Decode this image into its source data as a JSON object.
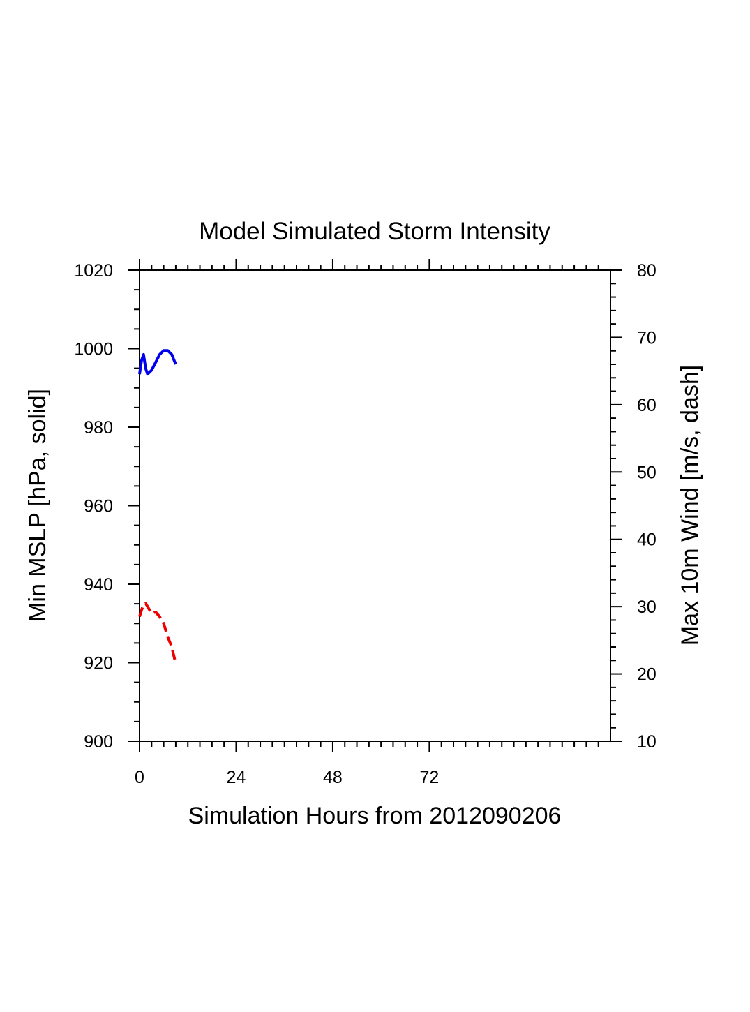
{
  "chart_data": {
    "type": "line",
    "title": "Model Simulated Storm Intensity",
    "xlabel": "Simulation Hours from 2012090206",
    "ylabel_left": "Min MSLP  [hPa, solid]",
    "ylabel_right": "Max 10m Wind  [m/s, dash]",
    "xlim": [
      0,
      117
    ],
    "ylim_left": [
      900,
      1020
    ],
    "ylim_right": [
      10,
      80
    ],
    "x_ticks": [
      0,
      24,
      48,
      72
    ],
    "x_tick_labels": [
      "0",
      "24",
      "48",
      "72"
    ],
    "y_left_ticks": [
      900,
      920,
      940,
      960,
      980,
      1000,
      1020
    ],
    "y_left_tick_labels": [
      "900",
      "920",
      "940",
      "960",
      "980",
      "1000",
      "1020"
    ],
    "y_right_ticks": [
      10,
      20,
      30,
      40,
      50,
      60,
      70,
      80
    ],
    "y_right_tick_labels": [
      "10",
      "20",
      "30",
      "40",
      "50",
      "60",
      "70",
      "80"
    ],
    "grid": false,
    "series": [
      {
        "name": "Min MSLP",
        "axis": "left",
        "style": "solid",
        "color": "#0000ee",
        "x": [
          0,
          0.5,
          1,
          1.5,
          2,
          3,
          4,
          5,
          6,
          7,
          8,
          9
        ],
        "values": [
          993.5,
          997,
          998.5,
          995,
          993.5,
          994.5,
          996.5,
          998.5,
          999.5,
          999.5,
          998.5,
          996
        ]
      },
      {
        "name": "Max 10m Wind",
        "axis": "right",
        "style": "dash",
        "color": "#ee0000",
        "x": [
          0,
          0.5,
          1,
          1.5,
          2,
          3,
          4,
          5,
          6,
          7,
          8,
          9
        ],
        "values": [
          28.5,
          29.5,
          30.3,
          30.5,
          30.0,
          29.0,
          29.2,
          28.5,
          27.5,
          25.5,
          24.0,
          21.5
        ]
      }
    ]
  }
}
